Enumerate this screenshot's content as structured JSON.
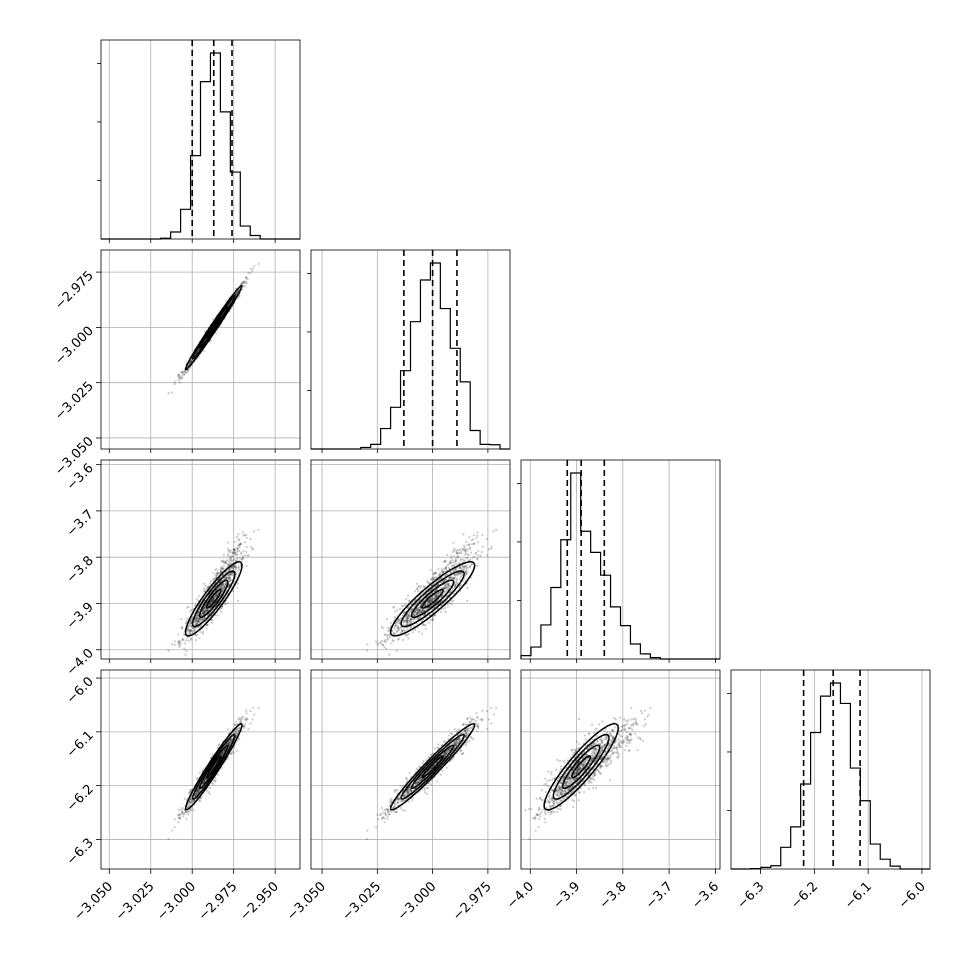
{
  "chart_data": {
    "type": "corner",
    "title": "",
    "parameters": [
      {
        "label": "",
        "range": [
          -3.055,
          -2.935
        ],
        "ticks": [
          -3.05,
          -3.025,
          -3.0,
          -2.975,
          -2.95
        ],
        "tick_labels": [
          "−3.050",
          "−3.025",
          "−3.000",
          "−2.975",
          "−2.950"
        ],
        "mean": -2.987,
        "sigma": 0.0085,
        "quantiles": [
          -3.0,
          -2.987,
          -2.976
        ]
      },
      {
        "label": "",
        "range": [
          -3.055,
          -2.965
        ],
        "ticks": [
          -3.05,
          -3.025,
          -3.0,
          -2.975
        ],
        "tick_labels": [
          "−3.050",
          "−3.025",
          "−3.000",
          "−2.975"
        ],
        "mean": -3.0,
        "sigma": 0.0095,
        "quantiles": [
          -3.013,
          -3.0,
          -2.989
        ]
      },
      {
        "label": "",
        "range": [
          -4.02,
          -3.59
        ],
        "ticks": [
          -4.0,
          -3.9,
          -3.8,
          -3.7,
          -3.6
        ],
        "tick_labels": [
          "−4.0",
          "−3.9",
          "−3.8",
          "−3.7",
          "−3.6"
        ],
        "mean": -3.89,
        "sigma": 0.04,
        "quantiles": [
          -3.92,
          -3.89,
          -3.84
        ]
      },
      {
        "label": "",
        "range": [
          -6.355,
          -5.985
        ],
        "ticks": [
          -6.3,
          -6.2,
          -6.1,
          -6.0
        ],
        "tick_labels": [
          "−6.3",
          "−6.2",
          "−6.1",
          "−6.0"
        ],
        "mean": -6.165,
        "sigma": 0.04,
        "quantiles": [
          -6.22,
          -6.165,
          -6.115
        ]
      }
    ],
    "correlations": [
      [
        1,
        0,
        0,
        0
      ],
      [
        0.99,
        1,
        0,
        0
      ],
      [
        0.9,
        0.9,
        1,
        0
      ],
      [
        0.97,
        0.97,
        0.9,
        1
      ]
    ],
    "contour_levels_sigma": [
      0.5,
      1.0,
      1.5,
      2.0
    ],
    "grid": true,
    "colors": {
      "line": "#000000",
      "points": "#333333",
      "grid": "#b0b0b0",
      "density": "#000000"
    }
  }
}
